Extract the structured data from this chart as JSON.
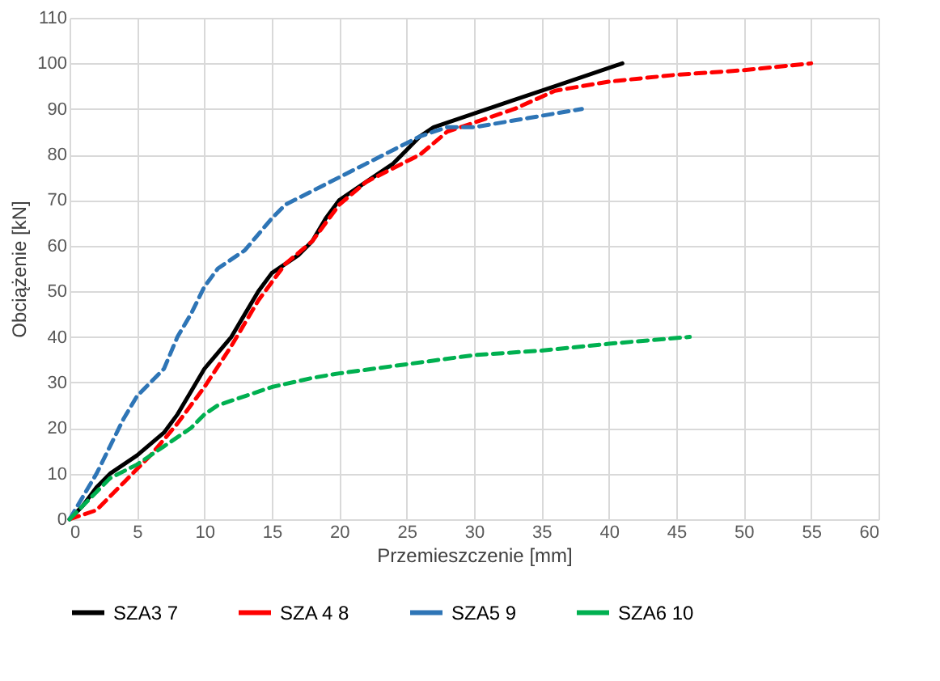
{
  "chart_data": {
    "type": "line",
    "xlabel": "Przemieszczenie [mm]",
    "ylabel": "Obciążenie [kN]",
    "xlim": [
      0,
      60
    ],
    "xticks": [
      0,
      5,
      10,
      15,
      20,
      25,
      30,
      35,
      40,
      45,
      50,
      55,
      60
    ],
    "ylim": [
      0,
      110
    ],
    "yticks": [
      0,
      10,
      20,
      30,
      40,
      50,
      60,
      70,
      80,
      90,
      100,
      110
    ],
    "grid": true,
    "legend": "bottom",
    "marker": "none",
    "series": [
      {
        "name": "SZA3 7",
        "color": "#000000",
        "line_style": "solid",
        "x": [
          0,
          1,
          2,
          3,
          5,
          7,
          8,
          9,
          10,
          12,
          13,
          14,
          15,
          16,
          17,
          18,
          19,
          20,
          22,
          24,
          25,
          26,
          27,
          30,
          33,
          36,
          41
        ],
        "values": [
          0,
          3,
          7,
          10,
          14,
          19,
          23,
          28,
          33,
          40,
          45,
          50,
          54,
          56,
          58,
          61,
          66,
          70,
          74,
          78,
          81,
          84,
          86,
          89,
          92,
          95,
          100
        ]
      },
      {
        "name": "SZA 4 8",
        "color": "#ff0000",
        "line_style": "dashed",
        "x": [
          0,
          2,
          4,
          6,
          8,
          10,
          12,
          14,
          16,
          18,
          20,
          22,
          24,
          26,
          28,
          30,
          33,
          36,
          40,
          45,
          50,
          55
        ],
        "values": [
          0,
          2,
          8,
          14,
          21,
          29,
          38,
          48,
          56,
          61,
          69,
          74,
          77,
          80,
          85,
          87,
          90,
          94,
          96,
          97.5,
          98.5,
          100
        ]
      },
      {
        "name": "SZA5 9",
        "color": "#2e75b6",
        "line_style": "dashed",
        "x": [
          0,
          1,
          2,
          3,
          4,
          5,
          7,
          8,
          9,
          10,
          11,
          13,
          15,
          16,
          18,
          20,
          22,
          24,
          26,
          28,
          30,
          34,
          38
        ],
        "values": [
          0,
          5,
          10,
          16,
          22,
          27,
          33,
          40,
          45,
          51,
          55,
          59,
          66,
          69,
          72,
          75,
          78,
          81,
          84,
          86,
          86,
          88,
          90
        ]
      },
      {
        "name": "SZA6 10",
        "color": "#00b050",
        "line_style": "dashed",
        "x": [
          0,
          1,
          2,
          3,
          5,
          7,
          9,
          10,
          11,
          13,
          15,
          18,
          20,
          25,
          30,
          35,
          40,
          46
        ],
        "values": [
          0,
          3,
          6,
          9,
          12,
          16,
          20,
          23,
          25,
          27,
          29,
          31,
          32,
          34,
          36,
          37,
          38.5,
          40
        ]
      }
    ]
  }
}
